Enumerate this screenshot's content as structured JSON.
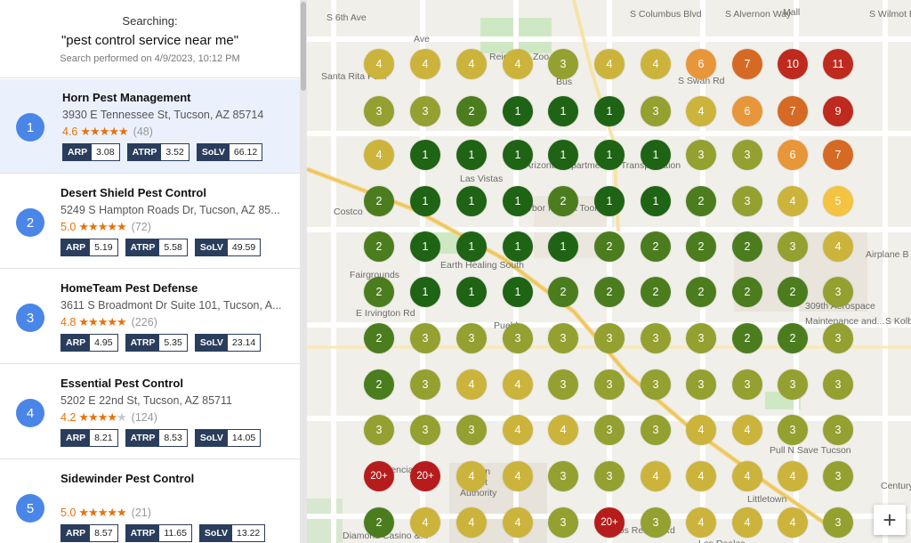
{
  "search": {
    "label": "Searching:",
    "query": "\"pest control service near me\"",
    "performed": "Search performed on 4/9/2023, 10:12 PM"
  },
  "listings": [
    {
      "rank": "1",
      "name": "Horn Pest Management",
      "address": "3930 E Tennessee St, Tucson, AZ 85714",
      "rating": "4.6",
      "stars": 5,
      "reviews": "(48)",
      "arp": "3.08",
      "atrp": "3.52",
      "solv": "66.12",
      "selected": true
    },
    {
      "rank": "2",
      "name": "Desert Shield Pest Control",
      "address": "5249 S Hampton Roads Dr, Tucson, AZ 85...",
      "rating": "5.0",
      "stars": 5,
      "reviews": "(72)",
      "arp": "5.19",
      "atrp": "5.58",
      "solv": "49.59",
      "selected": false
    },
    {
      "rank": "3",
      "name": "HomeTeam Pest Defense",
      "address": "3611 S Broadmont Dr Suite 101, Tucson, A...",
      "rating": "4.8",
      "stars": 5,
      "reviews": "(226)",
      "arp": "4.95",
      "atrp": "5.35",
      "solv": "23.14",
      "selected": false
    },
    {
      "rank": "4",
      "name": "Essential Pest Control",
      "address": "5202 E 22nd St, Tucson, AZ 85711",
      "rating": "4.2",
      "stars": 4,
      "reviews": "(124)",
      "arp": "8.21",
      "atrp": "8.53",
      "solv": "14.05",
      "selected": false
    },
    {
      "rank": "5",
      "name": "Sidewinder Pest Control",
      "address": "",
      "rating": "5.0",
      "stars": 5,
      "reviews": "(21)",
      "arp": "8.57",
      "atrp": "11.65",
      "solv": "13.22",
      "selected": false
    }
  ],
  "metric_labels": {
    "arp": "ARP",
    "atrp": "ATRP",
    "solv": "SoLV"
  },
  "star_glyph": "★",
  "grid": [
    [
      "4",
      "4",
      "4",
      "4",
      "3",
      "4",
      "4",
      "6",
      "7",
      "10",
      "11"
    ],
    [
      "3",
      "3",
      "2",
      "1",
      "1",
      "1",
      "3",
      "4",
      "6",
      "7",
      "9"
    ],
    [
      "4",
      "1",
      "1",
      "1",
      "1",
      "1",
      "1",
      "3",
      "3",
      "6",
      "7"
    ],
    [
      "2",
      "1",
      "1",
      "1",
      "2",
      "1",
      "1",
      "2",
      "3",
      "4",
      "5"
    ],
    [
      "2",
      "1",
      "1",
      "1",
      "1",
      "2",
      "2",
      "2",
      "2",
      "3",
      "4"
    ],
    [
      "2",
      "1",
      "1",
      "1",
      "2",
      "2",
      "2",
      "2",
      "2",
      "2",
      "3"
    ],
    [
      "2",
      "3",
      "3",
      "3",
      "3",
      "3",
      "3",
      "3",
      "2",
      "2",
      "3"
    ],
    [
      "2",
      "3",
      "4",
      "4",
      "3",
      "3",
      "3",
      "3",
      "3",
      "3",
      "3"
    ],
    [
      "3",
      "3",
      "3",
      "4",
      "4",
      "3",
      "3",
      "4",
      "4",
      "3",
      "3"
    ],
    [
      "20+",
      "20+",
      "4",
      "4",
      "3",
      "3",
      "4",
      "4",
      "4",
      "4",
      "3"
    ],
    [
      "2",
      "4",
      "4",
      "4",
      "3",
      "20+",
      "3",
      "4",
      "4",
      "4",
      "3"
    ]
  ],
  "colors": {
    "r1": "#1e6414",
    "r2": "#4b7d1e",
    "r3": "#94a030",
    "r4": "#ccb43c",
    "r5": "#f3c341",
    "r6": "#e8963a",
    "r7": "#d66a24",
    "r10": "#bf2a1e",
    "r20": "#b71c1c"
  },
  "map_labels": [
    "Santa Rita Park",
    "Reid Park Zoo",
    "Las Vistas",
    "Airplane B",
    "Fairgrounds",
    "309th Aerospace",
    "Maintenance and...",
    "Los Reales",
    "Tucson",
    "Airport",
    "Authority",
    "Littletown",
    "Century",
    "Pull N Save Tucson",
    "Costco",
    "Mall",
    "Earth Healing South",
    "Arizona Department of Transportation",
    "Harbor Freight Tools",
    "E Valencia Rd",
    "E Los Reales Rd",
    "E Irvington Rd",
    "S Columbus Blvd",
    "S Swan Rd",
    "S Alvernon Way",
    "S Kolb Rd",
    "S Wilmot Rd",
    "S 6th Ave",
    "Diamond Casino &...",
    "Bus",
    "Ave",
    "Pueblo"
  ],
  "zoom_label": "+"
}
